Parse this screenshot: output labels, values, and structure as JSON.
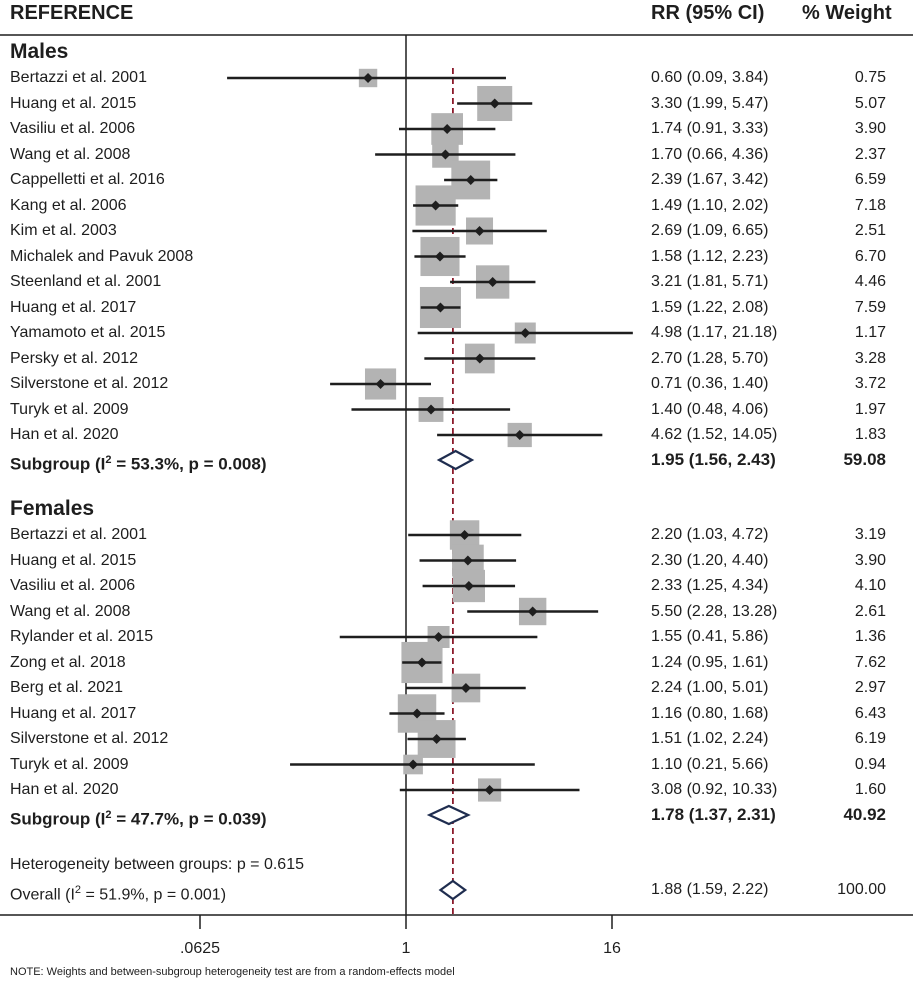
{
  "header": {
    "reference": "REFERENCE",
    "rr": "RR (95% CI)",
    "weight": "% Weight"
  },
  "colors": {
    "box": "#b3b3b3",
    "line": "#1e1e1e",
    "diamond": "#1f2d4f",
    "ref_line": "#8b1a2b"
  },
  "chart_data": {
    "type": "forest",
    "x_scale": "log",
    "x_range": [
      0.0625,
      16
    ],
    "xticks": [
      ".0625",
      "1",
      "16"
    ],
    "null_line": 1,
    "overall_line": 1.88,
    "groups": [
      {
        "name": "Males",
        "studies": [
          {
            "label": "Bertazzi et al. 2001",
            "rr": 0.6,
            "lo": 0.09,
            "hi": 3.84,
            "rr_text": "0.60 (0.09, 3.84)",
            "weight": "0.75"
          },
          {
            "label": "Huang et al. 2015",
            "rr": 3.3,
            "lo": 1.99,
            "hi": 5.47,
            "rr_text": "3.30 (1.99, 5.47)",
            "weight": "5.07"
          },
          {
            "label": "Vasiliu et al. 2006",
            "rr": 1.74,
            "lo": 0.91,
            "hi": 3.33,
            "rr_text": "1.74 (0.91, 3.33)",
            "weight": "3.90"
          },
          {
            "label": "Wang et al. 2008",
            "rr": 1.7,
            "lo": 0.66,
            "hi": 4.36,
            "rr_text": "1.70 (0.66, 4.36)",
            "weight": "2.37"
          },
          {
            "label": "Cappelletti et al. 2016",
            "rr": 2.39,
            "lo": 1.67,
            "hi": 3.42,
            "rr_text": "2.39 (1.67, 3.42)",
            "weight": "6.59"
          },
          {
            "label": "Kang et al. 2006",
            "rr": 1.49,
            "lo": 1.1,
            "hi": 2.02,
            "rr_text": "1.49 (1.10, 2.02)",
            "weight": "7.18"
          },
          {
            "label": "Kim et al. 2003",
            "rr": 2.69,
            "lo": 1.09,
            "hi": 6.65,
            "rr_text": "2.69 (1.09, 6.65)",
            "weight": "2.51"
          },
          {
            "label": "Michalek and Pavuk 2008",
            "rr": 1.58,
            "lo": 1.12,
            "hi": 2.23,
            "rr_text": "1.58 (1.12, 2.23)",
            "weight": "6.70"
          },
          {
            "label": "Steenland et al. 2001",
            "rr": 3.21,
            "lo": 1.81,
            "hi": 5.71,
            "rr_text": "3.21 (1.81, 5.71)",
            "weight": "4.46"
          },
          {
            "label": "Huang et al. 2017",
            "rr": 1.59,
            "lo": 1.22,
            "hi": 2.08,
            "rr_text": "1.59 (1.22, 2.08)",
            "weight": "7.59"
          },
          {
            "label": "Yamamoto et al. 2015",
            "rr": 4.98,
            "lo": 1.17,
            "hi": 21.18,
            "rr_text": "4.98 (1.17, 21.18)",
            "weight": "1.17"
          },
          {
            "label": "Persky et al. 2012",
            "rr": 2.7,
            "lo": 1.28,
            "hi": 5.7,
            "rr_text": "2.70 (1.28, 5.70)",
            "weight": "3.28"
          },
          {
            "label": "Silverstone et al. 2012",
            "rr": 0.71,
            "lo": 0.36,
            "hi": 1.4,
            "rr_text": "0.71 (0.36, 1.40)",
            "weight": "3.72"
          },
          {
            "label": "Turyk et al. 2009",
            "rr": 1.4,
            "lo": 0.48,
            "hi": 4.06,
            "rr_text": "1.40 (0.48, 4.06)",
            "weight": "1.97"
          },
          {
            "label": "Han et al. 2020",
            "rr": 4.62,
            "lo": 1.52,
            "hi": 14.05,
            "rr_text": "4.62 (1.52, 14.05)",
            "weight": "1.83"
          }
        ],
        "subgroup": {
          "label_pre": "Subgroup (I",
          "label_sup": "2",
          "label_post": " = 53.3%, p = 0.008)",
          "rr": 1.95,
          "lo": 1.56,
          "hi": 2.43,
          "rr_text": "1.95 (1.56, 2.43)",
          "weight": "59.08"
        }
      },
      {
        "name": "Females",
        "studies": [
          {
            "label": "Bertazzi et al. 2001",
            "rr": 2.2,
            "lo": 1.03,
            "hi": 4.72,
            "rr_text": "2.20 (1.03, 4.72)",
            "weight": "3.19"
          },
          {
            "label": "Huang et al. 2015",
            "rr": 2.3,
            "lo": 1.2,
            "hi": 4.4,
            "rr_text": "2.30 (1.20, 4.40)",
            "weight": "3.90"
          },
          {
            "label": "Vasiliu et al. 2006",
            "rr": 2.33,
            "lo": 1.25,
            "hi": 4.34,
            "rr_text": "2.33 (1.25, 4.34)",
            "weight": "4.10"
          },
          {
            "label": "Wang et al. 2008",
            "rr": 5.5,
            "lo": 2.28,
            "hi": 13.28,
            "rr_text": "5.50 (2.28, 13.28)",
            "weight": "2.61"
          },
          {
            "label": "Rylander et al. 2015",
            "rr": 1.55,
            "lo": 0.41,
            "hi": 5.86,
            "rr_text": "1.55 (0.41, 5.86)",
            "weight": "1.36"
          },
          {
            "label": "Zong et al. 2018",
            "rr": 1.24,
            "lo": 0.95,
            "hi": 1.61,
            "rr_text": "1.24 (0.95, 1.61)",
            "weight": "7.62"
          },
          {
            "label": "Berg et al. 2021",
            "rr": 2.24,
            "lo": 1.0,
            "hi": 5.01,
            "rr_text": "2.24 (1.00, 5.01)",
            "weight": "2.97"
          },
          {
            "label": "Huang et al. 2017",
            "rr": 1.16,
            "lo": 0.8,
            "hi": 1.68,
            "rr_text": "1.16 (0.80, 1.68)",
            "weight": "6.43"
          },
          {
            "label": "Silverstone et al. 2012",
            "rr": 1.51,
            "lo": 1.02,
            "hi": 2.24,
            "rr_text": "1.51 (1.02, 2.24)",
            "weight": "6.19"
          },
          {
            "label": "Turyk et al. 2009",
            "rr": 1.1,
            "lo": 0.21,
            "hi": 5.66,
            "rr_text": "1.10 (0.21, 5.66)",
            "weight": "0.94"
          },
          {
            "label": "Han et al. 2020",
            "rr": 3.08,
            "lo": 0.92,
            "hi": 10.33,
            "rr_text": "3.08 (0.92, 10.33)",
            "weight": "1.60"
          }
        ],
        "subgroup": {
          "label_pre": "Subgroup (I",
          "label_sup": "2",
          "label_post": " = 47.7%, p = 0.039)",
          "rr": 1.78,
          "lo": 1.37,
          "hi": 2.31,
          "rr_text": "1.78 (1.37, 2.31)",
          "weight": "40.92"
        }
      }
    ],
    "heterogeneity": "Heterogeneity between groups: p = 0.615",
    "overall": {
      "label_pre": "Overall (I",
      "label_sup": "2",
      "label_post": " = 51.9%, p = 0.001)",
      "rr": 1.88,
      "lo": 1.59,
      "hi": 2.22,
      "rr_text": "1.88 (1.59, 2.22)",
      "weight": "100.00"
    }
  },
  "note": "NOTE: Weights and between-subgroup heterogeneity test are from a random-effects model"
}
